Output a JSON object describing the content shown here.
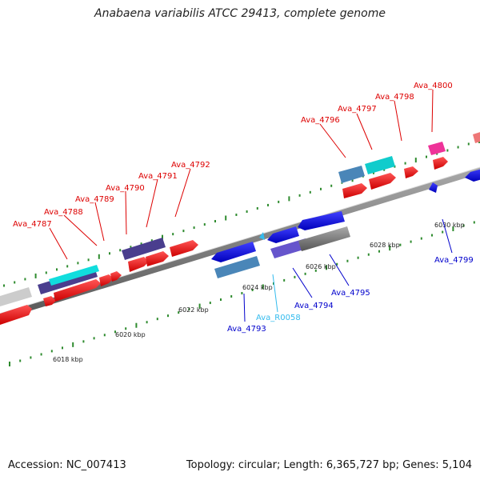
{
  "title": "Anabaena variabilis ATCC 29413, complete genome",
  "footer": {
    "accession": "Accession: NC_007413",
    "summary": "Topology: circular; Length: 6,365,727 bp; Genes: 5,104"
  },
  "colors": {
    "forward_label": "#dd0000",
    "reverse_label": "#0000cc",
    "rna_label": "#33bbee",
    "tick": "#2e8b2e",
    "backbone": "#777777"
  },
  "scale_labels": [
    "6018 kbp",
    "6020 kbp",
    "6022 kbp",
    "6024 kbp",
    "6026 kbp",
    "6028 kbp",
    "6030 kbp"
  ],
  "gene_labels": [
    {
      "text": "Ava_4787",
      "strand": "forward"
    },
    {
      "text": "Ava_4788",
      "strand": "forward"
    },
    {
      "text": "Ava_4789",
      "strand": "forward"
    },
    {
      "text": "Ava_4790",
      "strand": "forward"
    },
    {
      "text": "Ava_4791",
      "strand": "forward"
    },
    {
      "text": "Ava_4792",
      "strand": "forward"
    },
    {
      "text": "Ava_4796",
      "strand": "forward"
    },
    {
      "text": "Ava_4797",
      "strand": "forward"
    },
    {
      "text": "Ava_4798",
      "strand": "forward"
    },
    {
      "text": "Ava_4800",
      "strand": "forward"
    },
    {
      "text": "Ava_4793",
      "strand": "reverse"
    },
    {
      "text": "Ava_R0058",
      "strand": "rna"
    },
    {
      "text": "Ava_4794",
      "strand": "reverse"
    },
    {
      "text": "Ava_4795",
      "strand": "reverse"
    },
    {
      "text": "Ava_4799",
      "strand": "reverse"
    }
  ]
}
